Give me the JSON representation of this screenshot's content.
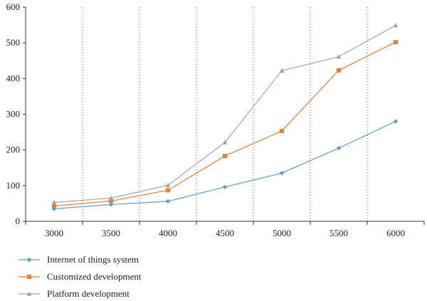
{
  "chart_data": {
    "type": "line",
    "title": "",
    "xlabel": "",
    "ylabel": "",
    "x": [
      3000,
      3500,
      4000,
      4500,
      5000,
      5500,
      6000
    ],
    "xticks": [
      "3000",
      "3500",
      "4000",
      "4500",
      "5000",
      "5500",
      "6000"
    ],
    "yticks": [
      "0",
      "100",
      "200",
      "300",
      "400",
      "500",
      "600"
    ],
    "ylim": [
      0,
      600
    ],
    "grid": "vertical dotted lines between categories",
    "legend_position": "bottom-left",
    "series": [
      {
        "name": "Internet of things system",
        "color": "#5b9bd5",
        "marker": "diamond",
        "values": [
          35,
          47,
          56,
          96,
          135,
          205,
          280
        ]
      },
      {
        "name": "Customized development",
        "color": "#ed7d31",
        "marker": "square",
        "values": [
          43,
          57,
          87,
          183,
          253,
          423,
          502
        ]
      },
      {
        "name": "Platform development",
        "color": "#a5a5a5",
        "marker": "triangle",
        "values": [
          53,
          65,
          101,
          221,
          422,
          461,
          549
        ]
      }
    ]
  }
}
